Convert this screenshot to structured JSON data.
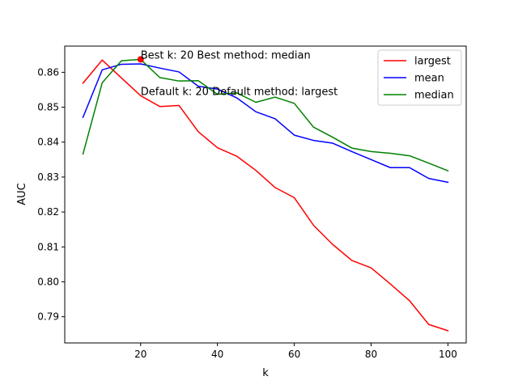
{
  "chart_data": {
    "type": "line",
    "title": "",
    "xlabel": "k",
    "ylabel": "AUC",
    "xlim": [
      0.25,
      104.75
    ],
    "ylim": [
      0.7825,
      0.8675
    ],
    "xticks": [
      20,
      40,
      60,
      80,
      100
    ],
    "yticks": [
      0.79,
      0.8,
      0.81,
      0.82,
      0.83,
      0.84,
      0.85,
      0.86
    ],
    "ytick_labels": [
      "0.79",
      "0.80",
      "0.81",
      "0.82",
      "0.83",
      "0.84",
      "0.85",
      "0.86"
    ],
    "grid": false,
    "legend_position": "top-right",
    "x": [
      5,
      10,
      15,
      20,
      25,
      30,
      35,
      40,
      45,
      50,
      55,
      60,
      65,
      70,
      75,
      80,
      85,
      90,
      95,
      100
    ],
    "series": [
      {
        "name": "largest",
        "color": "#ff0000",
        "values": [
          0.8569,
          0.8635,
          0.8584,
          0.8533,
          0.8502,
          0.8505,
          0.843,
          0.8384,
          0.836,
          0.8319,
          0.827,
          0.8241,
          0.8162,
          0.8107,
          0.8061,
          0.804,
          0.7994,
          0.7946,
          0.7878,
          0.786
        ]
      },
      {
        "name": "mean",
        "color": "#0000ff",
        "values": [
          0.8471,
          0.8607,
          0.8623,
          0.8624,
          0.8612,
          0.8601,
          0.856,
          0.8552,
          0.8527,
          0.8487,
          0.8467,
          0.842,
          0.8405,
          0.8397,
          0.8373,
          0.835,
          0.8327,
          0.8327,
          0.8296,
          0.8285
        ]
      },
      {
        "name": "median",
        "color": "#008000",
        "values": [
          0.8366,
          0.857,
          0.8633,
          0.8637,
          0.8585,
          0.8575,
          0.8576,
          0.8537,
          0.8541,
          0.8514,
          0.8529,
          0.8511,
          0.8443,
          0.8414,
          0.8383,
          0.8373,
          0.8368,
          0.8361,
          0.834,
          0.8318
        ]
      }
    ],
    "highlight_point": {
      "x": 20,
      "y": 0.8637,
      "color": "#ff0000"
    },
    "annotations": [
      {
        "text": "Best k: 20 Best method: median",
        "x": 20,
        "y": 0.8637
      },
      {
        "text": "Default k: 20 Default method: largest",
        "x": 20,
        "y": 0.8533
      }
    ]
  }
}
